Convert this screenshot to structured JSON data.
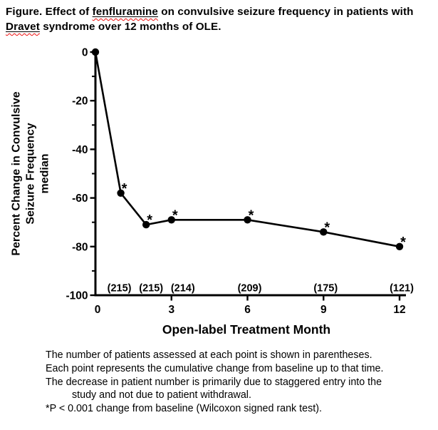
{
  "title": {
    "lines": [
      {
        "segments": [
          {
            "text": "Figure. Effect of ",
            "misspelled": false
          },
          {
            "text": "fenfluramine",
            "misspelled": true
          },
          {
            "text": " on convulsive seizure frequency in patients with",
            "misspelled": false
          }
        ]
      },
      {
        "segments": [
          {
            "text": "Dravet",
            "misspelled": true
          },
          {
            "text": " syndrome over 12 months of OLE.",
            "misspelled": false
          }
        ]
      }
    ]
  },
  "chart_data": {
    "type": "line",
    "title": "",
    "xlabel": "Open-label Treatment Month",
    "ylabel_lines": [
      "Percent Change in Convulsive",
      "Seizure Frequency",
      "median"
    ],
    "xlim": [
      0,
      12
    ],
    "ylim": [
      -100,
      0
    ],
    "grid": false,
    "legend": "none",
    "line_color": "#000000",
    "marker_style": "filled-circle",
    "significance_marker": "*",
    "points": [
      {
        "month": 0,
        "value": 0,
        "n": "",
        "significant": false
      },
      {
        "month": 1,
        "value": -58,
        "n": "(215)",
        "significant": true
      },
      {
        "month": 2,
        "value": -71,
        "n": "(215)",
        "significant": true
      },
      {
        "month": 3,
        "value": -69,
        "n": "(214)",
        "significant": true
      },
      {
        "month": 6,
        "value": -69,
        "n": "(209)",
        "significant": true
      },
      {
        "month": 9,
        "value": -74,
        "n": "(175)",
        "significant": true
      },
      {
        "month": 12,
        "value": -80,
        "n": "(121)",
        "significant": true
      }
    ],
    "y_major_ticks": [
      {
        "value": 0,
        "label": "0"
      },
      {
        "value": -20,
        "label": "-20"
      },
      {
        "value": -40,
        "label": "-40"
      },
      {
        "value": -60,
        "label": "-60"
      },
      {
        "value": -80,
        "label": "-80"
      },
      {
        "value": -100,
        "label": "-100"
      }
    ],
    "y_minor_ticks": [
      -10,
      -30,
      -50,
      -70,
      -90
    ],
    "x_ticks": [
      {
        "value": 0,
        "label": "0"
      },
      {
        "value": 3,
        "label": "3"
      },
      {
        "value": 6,
        "label": "6"
      },
      {
        "value": 9,
        "label": "9"
      },
      {
        "value": 12,
        "label": "12"
      }
    ]
  },
  "footnotes": {
    "lines": [
      {
        "text": "The number of patients assessed at each point is shown in parentheses.",
        "indent": 0
      },
      {
        "text": "Each point represents the cumulative change from baseline up to that time.",
        "indent": 0
      },
      {
        "text": "The decrease in patient number is primarily due to staggered entry into the",
        "indent": 0
      },
      {
        "text": "study and not due to patient withdrawal.",
        "indent": 1
      },
      {
        "text": "*P < 0.001 change from baseline (Wilcoxon signed rank test).",
        "indent": 0
      }
    ]
  }
}
